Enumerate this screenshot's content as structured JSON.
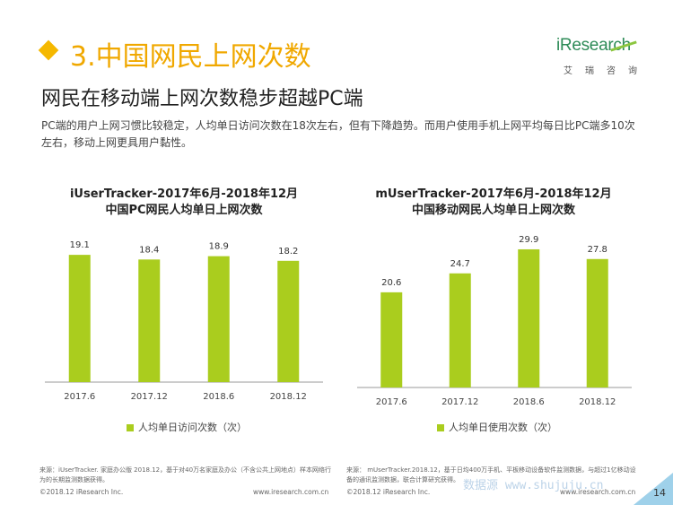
{
  "header": {
    "section_title": "3.中国网民上网次数",
    "headline": "网民在移动端上网次数稳步超越PC端",
    "summary": "PC端的用户上网习惯比较稳定，人均单日访问次数在18次左右，但有下降趋势。而用户使用手机上网平均每日比PC端多10次左右，移动上网更具用户黏性。"
  },
  "logo": {
    "brand": "iResearch",
    "sub": "艾瑞咨询"
  },
  "colors": {
    "accent": "#f0a800",
    "bar": "#aacd1e",
    "logo_green": "#2e8b57"
  },
  "chart_data": [
    {
      "type": "bar",
      "title": "iUserTracker-2017年6月-2018年12月",
      "subtitle": "中国PC网民人均单日上网次数",
      "categories": [
        "2017.6",
        "2017.12",
        "2018.6",
        "2018.12"
      ],
      "series": [
        {
          "name": "人均单日访问次数（次）",
          "values": [
            19.1,
            18.4,
            18.9,
            18.2
          ]
        }
      ],
      "ylim": [
        0,
        21
      ],
      "grid": false,
      "legend": "bottom"
    },
    {
      "type": "bar",
      "title": "mUserTracker-2017年6月-2018年12月",
      "subtitle": "中国移动网民人均单日上网次数",
      "categories": [
        "2017.6",
        "2017.12",
        "2018.6",
        "2018.12"
      ],
      "series": [
        {
          "name": "人均单日使用次数（次）",
          "values": [
            20.6,
            24.7,
            29.9,
            27.8
          ]
        }
      ],
      "ylim": [
        0,
        33
      ],
      "grid": false,
      "legend": "bottom"
    }
  ],
  "footer": {
    "source_left": "来源：iUserTracker. 家庭办公版 2018.12，基于对40万名家庭及办公（不含公共上网地点）样本网络行为的长期监测数据获得。",
    "source_right": "来源： mUserTracker.2018.12，基于日均400万手机、平板移动设备软件监测数据，与超过1亿移动设备的通讯监测数据，联合计算研究获得。",
    "copyright_left": "©2018.12 iResearch Inc.",
    "site_left": "www.iresearch.com.cn",
    "copyright_right": "©2018.12 iResearch Inc.",
    "site_right": "www.iresearch.com.cn",
    "watermark": "数据源 www.shujuju.cn",
    "page": "14"
  }
}
